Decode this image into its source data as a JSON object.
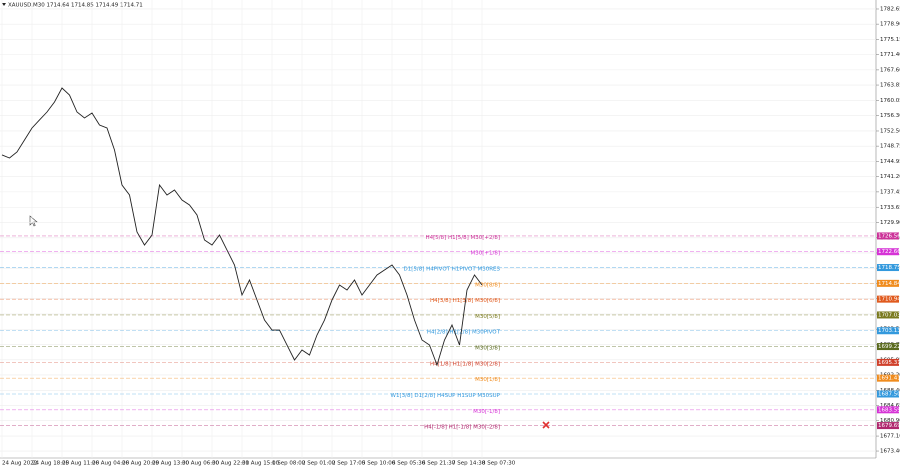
{
  "chart_data": {
    "type": "line",
    "title": "XAUUSD,M30  1714.64 1714.85 1714.49 1714.71",
    "categories": [
      "24 Aug 2022",
      null,
      null,
      null,
      "24 Aug 18:00",
      null,
      null,
      null,
      "25 Aug 11:00",
      null,
      null,
      null,
      "26 Aug 04:00",
      null,
      null,
      null,
      "26 Aug 20:00",
      null,
      null,
      null,
      "29 Aug 13:00",
      null,
      null,
      null,
      "30 Aug 06:00",
      null,
      null,
      null,
      "30 Aug 22:00",
      null,
      null,
      null,
      "31 Aug 15:00",
      null,
      null,
      null,
      "1 Sep 08:00",
      null,
      null,
      null,
      "2 Sep 01:00",
      null,
      null,
      null,
      "2 Sep 17:00",
      null,
      null,
      null,
      "5 Sep 10:00",
      null,
      null,
      null,
      "6 Sep 05:30",
      null,
      null,
      null,
      "6 Sep 21:30",
      null,
      null,
      null,
      "7 Sep 14:30",
      null,
      null,
      null,
      "8 Sep 07:30"
    ],
    "series": [
      {
        "color": "#222222",
        "values": [
          1746.57,
          1745.82,
          1747.31,
          1750.27,
          1753.24,
          1755.22,
          1757.19,
          1759.66,
          1763.12,
          1761.39,
          1757.19,
          1755.71,
          1756.95,
          1753.98,
          1753.24,
          1747.8,
          1739.15,
          1736.68,
          1727.53,
          1724.32,
          1726.79,
          1739.15,
          1736.68,
          1737.91,
          1735.44,
          1734.21,
          1731.74,
          1725.56,
          1724.32,
          1726.79,
          1723.08,
          1719.38,
          1711.96,
          1715.67,
          1710.73,
          1705.78,
          1703.31,
          1703.31,
          1699.6,
          1695.9,
          1698.37,
          1697.13,
          1702.08,
          1705.78,
          1710.73,
          1714.43,
          1713.2,
          1715.67,
          1711.96,
          1714.43,
          1716.91,
          1718.14,
          1719.38,
          1716.91,
          1711.96,
          1705.78,
          1700.84,
          1699.6,
          1694.66,
          1700.84,
          1704.55,
          1699.6,
          1713.2,
          1716.91,
          1714.43
        ]
      }
    ],
    "ylim": [
      1671.68,
      1784.87
    ],
    "yticks": [
      1782.65,
      {
        "value": 1778.9,
        "label": "1778.90"
      },
      1775.15,
      {
        "value": 1771.4,
        "label": "1771.40"
      },
      {
        "value": 1767.6,
        "label": "1767.60"
      },
      1763.85,
      1760.05,
      {
        "value": 1756.3,
        "label": "1756.30"
      },
      {
        "value": 1752.5,
        "label": "1752.50"
      },
      1748.75,
      1744.95,
      {
        "value": 1741.2,
        "label": "1741.20"
      },
      1737.45,
      1733.65,
      {
        "value": 1729.9,
        "label": "1729.90"
      },
      {
        "value": 1726.1,
        "label": "1726.10"
      },
      1722.35,
      {
        "value": 1718.6,
        "label": "1718.60"
      },
      {
        "value": 1714.8,
        "label": "1714.80"
      },
      1711.05,
      1707.25,
      {
        "value": 1703.5,
        "label": "1703.50"
      },
      1699.75,
      1695.95,
      {
        "value": 1692.2,
        "label": "1692.20"
      },
      {
        "value": 1688.4,
        "label": "1688.40"
      },
      1684.65,
      {
        "value": 1680.9,
        "label": "1680.90"
      },
      {
        "value": 1677.1,
        "label": "1677.10"
      },
      {
        "value": 1673.4,
        "label": "1673.40"
      }
    ],
    "grid": true,
    "levels": [
      {
        "value": 1726.56,
        "name": "H4[5/8] H1[5/8] M30[+2/8]",
        "color": "#cc3399"
      },
      {
        "value": 1722.66,
        "name": "M30[+1/8]",
        "color": "#d633d6"
      },
      {
        "value": 1718.75,
        "name": "D1[5/8] H4PIVOT H1PIVOT M30RES",
        "color": "#3399dd"
      },
      {
        "value": 1714.84,
        "name": "M30[8/8]",
        "color": "#f08c1e"
      },
      {
        "value": 1710.94,
        "name": "H4[3/8] H1[3/8] M30[6/8]",
        "color": "#e05a1e"
      },
      {
        "value": 1707.03,
        "name": "M30[5/8]",
        "color": "#7a7a1e"
      },
      {
        "value": 1703.13,
        "name": "H4[2/8] H1[2/8] M30PIVOT",
        "color": "#3399dd"
      },
      {
        "value": 1699.22,
        "name": "M30[3/8]",
        "color": "#5a6a1e"
      },
      {
        "value": 1695.31,
        "name": "H4[1/8] H1[1/8] M30[2/8]",
        "color": "#d0402a"
      },
      {
        "value": 1691.41,
        "name": "M30[1/8]",
        "color": "#f08c1e"
      },
      {
        "value": 1687.5,
        "label": "1687.50",
        "name": "W1[3/8] D1[2/8] H4SUP H1SUP M30SUP",
        "color": "#3399dd"
      },
      {
        "value": 1683.59,
        "name": "M30[-1/8]",
        "color": "#d633d6"
      },
      {
        "value": 1679.69,
        "name": "H4[-1/8] H1[-1/8] M30[-2/8]",
        "color": "#b0286e"
      }
    ]
  }
}
